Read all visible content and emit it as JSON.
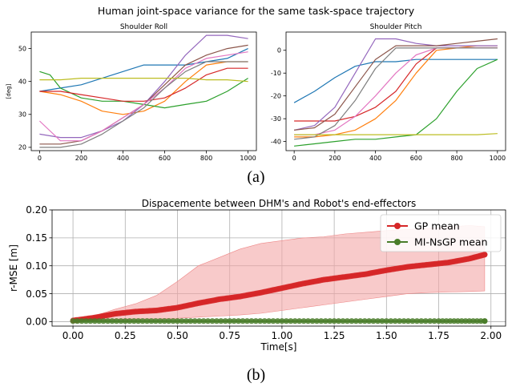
{
  "figure": {
    "suptitle": "Human joint-space variance for the same task-space trajectory",
    "caption_a": "(a)",
    "caption_b": "(b)"
  },
  "chart_data": [
    {
      "type": "line",
      "title": "Shoulder Roll",
      "xlabel": "",
      "ylabel": "[deg]",
      "xlim": [
        -40,
        1040
      ],
      "ylim": [
        19,
        55
      ],
      "xticks": [
        0,
        200,
        400,
        600,
        800,
        1000
      ],
      "yticks": [
        20,
        30,
        40,
        50
      ],
      "grid": false,
      "series": [
        {
          "color": "#1f77b4",
          "x": [
            0,
            100,
            200,
            300,
            400,
            500,
            600,
            700,
            800,
            900,
            1000
          ],
          "y": [
            37,
            38,
            39,
            41,
            43,
            45,
            45,
            45,
            46,
            47,
            50
          ]
        },
        {
          "color": "#ff7f0e",
          "x": [
            0,
            100,
            200,
            300,
            400,
            500,
            600,
            700,
            800,
            900,
            1000
          ],
          "y": [
            37,
            36,
            34,
            31,
            30,
            31,
            34,
            40,
            45,
            46,
            46
          ]
        },
        {
          "color": "#2ca02c",
          "x": [
            0,
            50,
            100,
            200,
            300,
            400,
            500,
            600,
            700,
            800,
            900,
            1000
          ],
          "y": [
            43,
            42,
            38,
            35,
            34,
            34,
            33,
            32,
            33,
            34,
            37,
            41
          ]
        },
        {
          "color": "#d62728",
          "x": [
            0,
            100,
            200,
            300,
            400,
            500,
            600,
            700,
            800,
            900,
            1000
          ],
          "y": [
            37,
            37,
            36,
            35,
            34,
            34,
            35,
            38,
            42,
            44,
            44
          ]
        },
        {
          "color": "#9467bd",
          "x": [
            0,
            100,
            200,
            300,
            400,
            500,
            600,
            700,
            800,
            900,
            1000
          ],
          "y": [
            24,
            23,
            23,
            25,
            28,
            33,
            40,
            48,
            54,
            54,
            53
          ]
        },
        {
          "color": "#8c564b",
          "x": [
            0,
            100,
            200,
            300,
            400,
            500,
            600,
            700,
            800,
            900,
            1000
          ],
          "y": [
            21,
            21,
            22,
            25,
            29,
            33,
            39,
            45,
            48,
            50,
            51
          ]
        },
        {
          "color": "#e377c2",
          "x": [
            0,
            100,
            200,
            300,
            400,
            500,
            600,
            700,
            800,
            900,
            1000
          ],
          "y": [
            28,
            22,
            22,
            25,
            29,
            33,
            38,
            44,
            47,
            48,
            49
          ]
        },
        {
          "color": "#7f7f7f",
          "x": [
            0,
            100,
            200,
            300,
            400,
            500,
            600,
            700,
            800,
            900,
            1000
          ],
          "y": [
            20,
            20,
            21,
            24,
            28,
            32,
            38,
            43,
            46,
            46,
            46
          ]
        },
        {
          "color": "#bcbd22",
          "x": [
            0,
            100,
            200,
            300,
            400,
            500,
            600,
            700,
            800,
            900,
            1000
          ],
          "y": [
            40.5,
            40.5,
            41,
            41,
            41,
            41,
            41,
            41,
            40.5,
            40.5,
            40
          ]
        }
      ]
    },
    {
      "type": "line",
      "title": "Shoulder Pitch",
      "xlabel": "",
      "ylabel": "",
      "xlim": [
        -40,
        1040
      ],
      "ylim": [
        -44,
        8
      ],
      "xticks": [
        0,
        200,
        400,
        600,
        800,
        1000
      ],
      "yticks": [
        -40,
        -30,
        -20,
        -10,
        0
      ],
      "grid": false,
      "series": [
        {
          "color": "#1f77b4",
          "x": [
            0,
            100,
            200,
            300,
            400,
            500,
            600,
            700,
            800,
            900,
            1000
          ],
          "y": [
            -23,
            -18,
            -12,
            -7,
            -5,
            -5,
            -4,
            -4,
            -4,
            -4,
            -4
          ]
        },
        {
          "color": "#ff7f0e",
          "x": [
            0,
            100,
            200,
            300,
            400,
            500,
            600,
            700,
            800,
            900,
            1000
          ],
          "y": [
            -38,
            -38,
            -37,
            -35,
            -30,
            -22,
            -10,
            0,
            1,
            2,
            2
          ]
        },
        {
          "color": "#2ca02c",
          "x": [
            0,
            100,
            200,
            300,
            400,
            500,
            600,
            700,
            800,
            900,
            1000
          ],
          "y": [
            -42,
            -41,
            -40,
            -39,
            -39,
            -38,
            -37,
            -30,
            -18,
            -8,
            -4
          ]
        },
        {
          "color": "#d62728",
          "x": [
            0,
            100,
            200,
            300,
            400,
            500,
            600,
            700,
            800,
            900,
            1000
          ],
          "y": [
            -31,
            -31,
            -31,
            -29,
            -25,
            -18,
            -6,
            1,
            1,
            1,
            1
          ]
        },
        {
          "color": "#9467bd",
          "x": [
            0,
            100,
            200,
            300,
            400,
            500,
            600,
            700,
            800,
            900,
            1000
          ],
          "y": [
            -35,
            -33,
            -25,
            -10,
            5,
            5,
            3,
            2,
            2,
            2,
            2
          ]
        },
        {
          "color": "#8c564b",
          "x": [
            0,
            100,
            200,
            300,
            400,
            500,
            600,
            700,
            800,
            900,
            1000
          ],
          "y": [
            -35,
            -34,
            -28,
            -16,
            -4,
            2,
            2,
            2,
            3,
            4,
            5
          ]
        },
        {
          "color": "#e377c2",
          "x": [
            0,
            100,
            200,
            300,
            400,
            500,
            600,
            700,
            800,
            900,
            1000
          ],
          "y": [
            -37,
            -37,
            -35,
            -29,
            -20,
            -10,
            -2,
            1,
            1,
            1,
            1
          ]
        },
        {
          "color": "#7f7f7f",
          "x": [
            0,
            100,
            200,
            300,
            400,
            500,
            600,
            700,
            800,
            900,
            1000
          ],
          "y": [
            -39,
            -38,
            -33,
            -22,
            -8,
            1,
            1,
            1,
            1,
            1,
            1
          ]
        },
        {
          "color": "#bcbd22",
          "x": [
            0,
            100,
            200,
            300,
            400,
            500,
            600,
            700,
            800,
            900,
            1000
          ],
          "y": [
            -37,
            -37,
            -37,
            -37,
            -37,
            -37,
            -37,
            -37,
            -37,
            -37,
            -36.5
          ]
        }
      ]
    },
    {
      "type": "line",
      "title": "Dispacemente between DHM's and Robot's end-effectors",
      "xlabel": "Time[s]",
      "ylabel": "r-MSE [m]",
      "xlim": [
        -0.1,
        2.07
      ],
      "ylim": [
        -0.008,
        0.2
      ],
      "xticks": [
        0.0,
        0.25,
        0.5,
        0.75,
        1.0,
        1.25,
        1.5,
        1.75,
        2.0
      ],
      "xtick_labels": [
        "0.00",
        "0.25",
        "0.50",
        "0.75",
        "1.00",
        "1.25",
        "1.50",
        "1.75",
        "2.00"
      ],
      "yticks": [
        0.0,
        0.05,
        0.1,
        0.15,
        0.2
      ],
      "ytick_labels": [
        "0.00",
        "0.05",
        "0.10",
        "0.15",
        "0.20"
      ],
      "grid": true,
      "legend": "top-right",
      "series": [
        {
          "name": "GP mean",
          "color": "#d62728",
          "x": [
            0,
            0.1,
            0.2,
            0.3,
            0.4,
            0.5,
            0.6,
            0.7,
            0.8,
            0.9,
            1.0,
            1.1,
            1.2,
            1.3,
            1.4,
            1.5,
            1.6,
            1.7,
            1.8,
            1.9,
            1.97
          ],
          "y": [
            0.002,
            0.007,
            0.014,
            0.018,
            0.02,
            0.025,
            0.033,
            0.04,
            0.045,
            0.052,
            0.06,
            0.068,
            0.075,
            0.08,
            0.085,
            0.092,
            0.098,
            0.102,
            0.106,
            0.113,
            0.12
          ],
          "band_upper": [
            0.003,
            0.01,
            0.022,
            0.032,
            0.047,
            0.072,
            0.1,
            0.115,
            0.13,
            0.14,
            0.145,
            0.15,
            0.152,
            0.157,
            0.16,
            0.163,
            0.165,
            0.167,
            0.17,
            0.172,
            0.17
          ],
          "band_lower": [
            0.001,
            0.002,
            0.004,
            0.005,
            0.005,
            0.006,
            0.008,
            0.01,
            0.012,
            0.015,
            0.02,
            0.025,
            0.03,
            0.035,
            0.04,
            0.045,
            0.05,
            0.052,
            0.053,
            0.054,
            0.055
          ]
        },
        {
          "name": "MI-NsGP mean",
          "color": "#4a7d2a",
          "x": [
            0,
            0.25,
            0.5,
            0.75,
            1.0,
            1.25,
            1.5,
            1.75,
            1.97
          ],
          "y": [
            0.001,
            0.001,
            0.001,
            0.001,
            0.001,
            0.001,
            0.001,
            0.001,
            0.001
          ]
        }
      ]
    }
  ]
}
